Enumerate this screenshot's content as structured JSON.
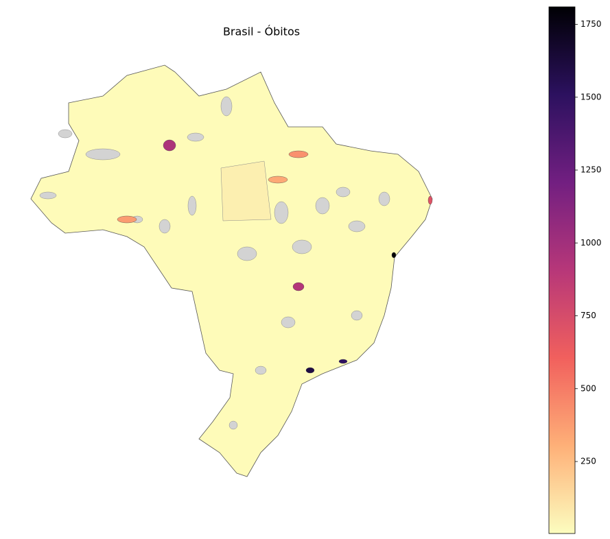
{
  "chart_data": {
    "type": "choropleth",
    "title": "Brasil - Óbitos",
    "colormap": [
      "#fcfdbf",
      "#feb078",
      "#f1605d",
      "#b73779",
      "#721f81",
      "#2c115f",
      "#000004"
    ],
    "missing_color": "#d3d3d3",
    "base_color": "#fefbb9",
    "clim": [
      3,
      1810
    ],
    "cticks": [
      250,
      500,
      750,
      1000,
      1250,
      1500,
      1750
    ],
    "highlights": [
      {
        "value": 950
      },
      {
        "value": 920
      },
      {
        "value": 1600
      },
      {
        "value": 1500
      },
      {
        "value": 1800
      },
      {
        "value": 700
      },
      {
        "value": 380
      },
      {
        "value": 330
      },
      {
        "value": 420
      }
    ]
  }
}
